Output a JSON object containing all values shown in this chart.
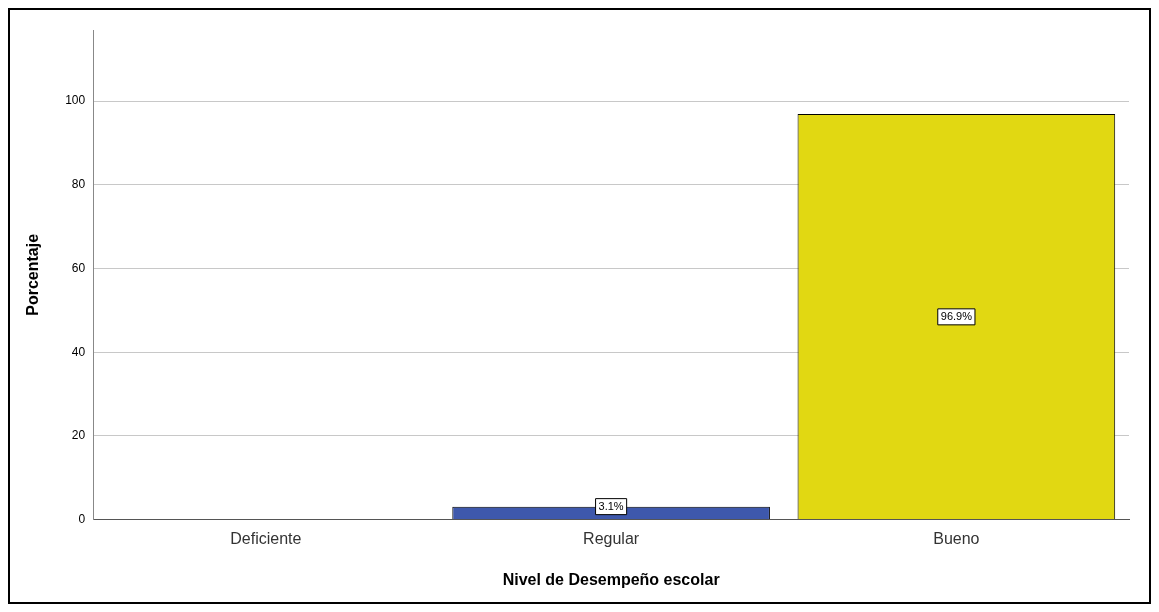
{
  "chart_data": {
    "type": "bar",
    "xlabel": "Nivel de Desempeño escolar",
    "ylabel": "Porcentaje",
    "categories": [
      "Deficiente",
      "Regular",
      "Bueno"
    ],
    "values": [
      0,
      3.1,
      96.9
    ],
    "colors": [
      "#3a3a3a",
      "#3e58ac",
      "#e1d812"
    ],
    "value_labels": [
      null,
      "3.1%",
      "96.9%"
    ],
    "ylim": [
      0,
      117
    ],
    "yticks": [
      0,
      20,
      40,
      60,
      80,
      100
    ],
    "grid": "y",
    "legend": false
  }
}
